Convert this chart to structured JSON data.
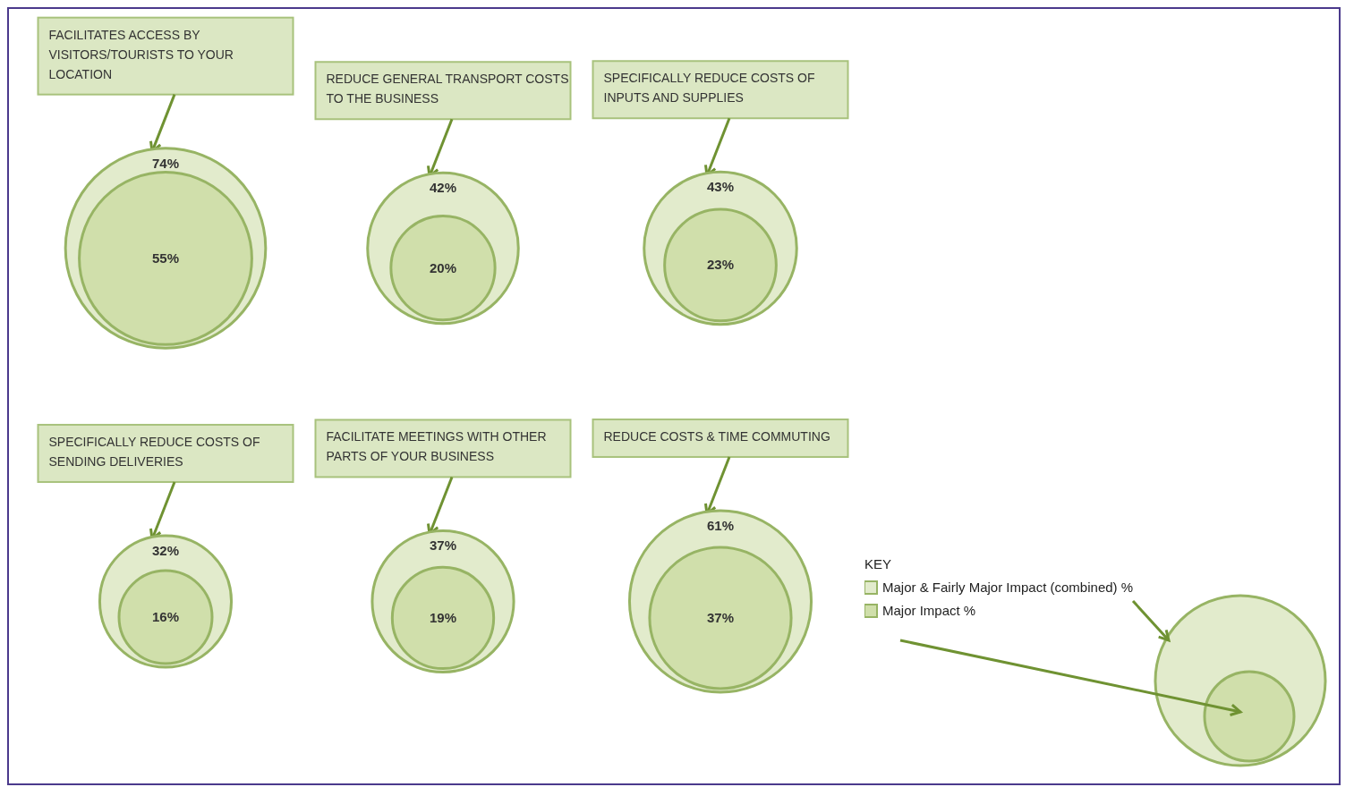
{
  "chart_data": {
    "type": "other",
    "legend_title": "KEY",
    "legend": "bottom right",
    "categories": [
      "FACILITATES ACCESS BY VISITORS/TOURISTS TO YOUR LOCATION",
      "REDUCE GENERAL TRANSPORT COSTS TO THE BUSINESS",
      "SPECIFICALLY REDUCE COSTS OF INPUTS AND SUPPLIES",
      "SPECIFICALLY REDUCE COSTS OF SENDING DELIVERIES",
      "FACILITATE MEETINGS WITH OTHER PARTS OF YOUR BUSINESS",
      "REDUCE COSTS & TIME COMMUTING"
    ],
    "series": [
      {
        "name": "Major & Fairly Major  Impact (combined) %",
        "color": "#e2ebcc",
        "values": [
          74,
          42,
          43,
          32,
          37,
          61
        ],
        "value_labels": [
          "74%",
          "42%",
          "43%",
          "32%",
          "37%",
          "61%"
        ]
      },
      {
        "name": "Major Impact %",
        "color": "#d0dfab",
        "values": [
          55,
          20,
          23,
          16,
          19,
          37
        ],
        "value_labels": [
          "55%",
          "20%",
          "23%",
          "16%",
          "19%",
          "37%"
        ]
      }
    ]
  }
}
